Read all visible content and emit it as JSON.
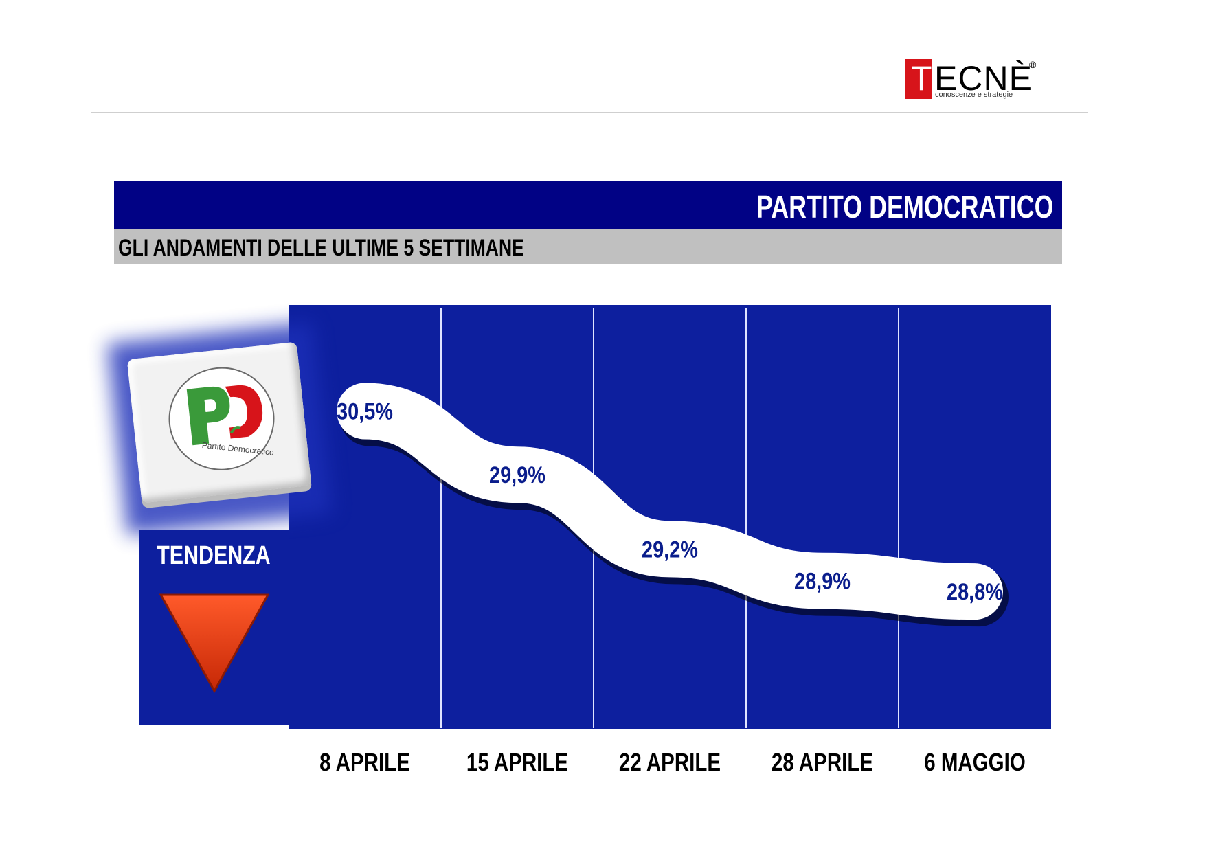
{
  "brand": {
    "letter": "T",
    "rest": "ECNÈ",
    "tagline": "conoscenze e strategie",
    "registered": "®"
  },
  "header": {
    "title": "PARTITO DEMOCRATICO",
    "subtitle": "GLI ANDAMENTI DELLE ULTIME 5 SETTIMANE"
  },
  "party_logo": {
    "letters": "PD",
    "caption": "Partito Democratico"
  },
  "tendenza": {
    "label": "TENDENZA",
    "direction": "down"
  },
  "colors": {
    "title_bar": "#010285",
    "chart_bg": "#0d1f9e",
    "subtitle_bar": "#c0c0c0",
    "arrow": "#e13a10",
    "value_text": "#0a1d8c"
  },
  "chart_data": {
    "type": "line",
    "categories": [
      "8 APRILE",
      "15 APRILE",
      "22 APRILE",
      "28 APRILE",
      "6 MAGGIO"
    ],
    "values": [
      30.5,
      29.9,
      29.2,
      28.9,
      28.8
    ],
    "value_labels": [
      "30,5%",
      "29,9%",
      "29,2%",
      "28,9%",
      "28,8%"
    ],
    "ylim": [
      27.5,
      31.5
    ]
  }
}
